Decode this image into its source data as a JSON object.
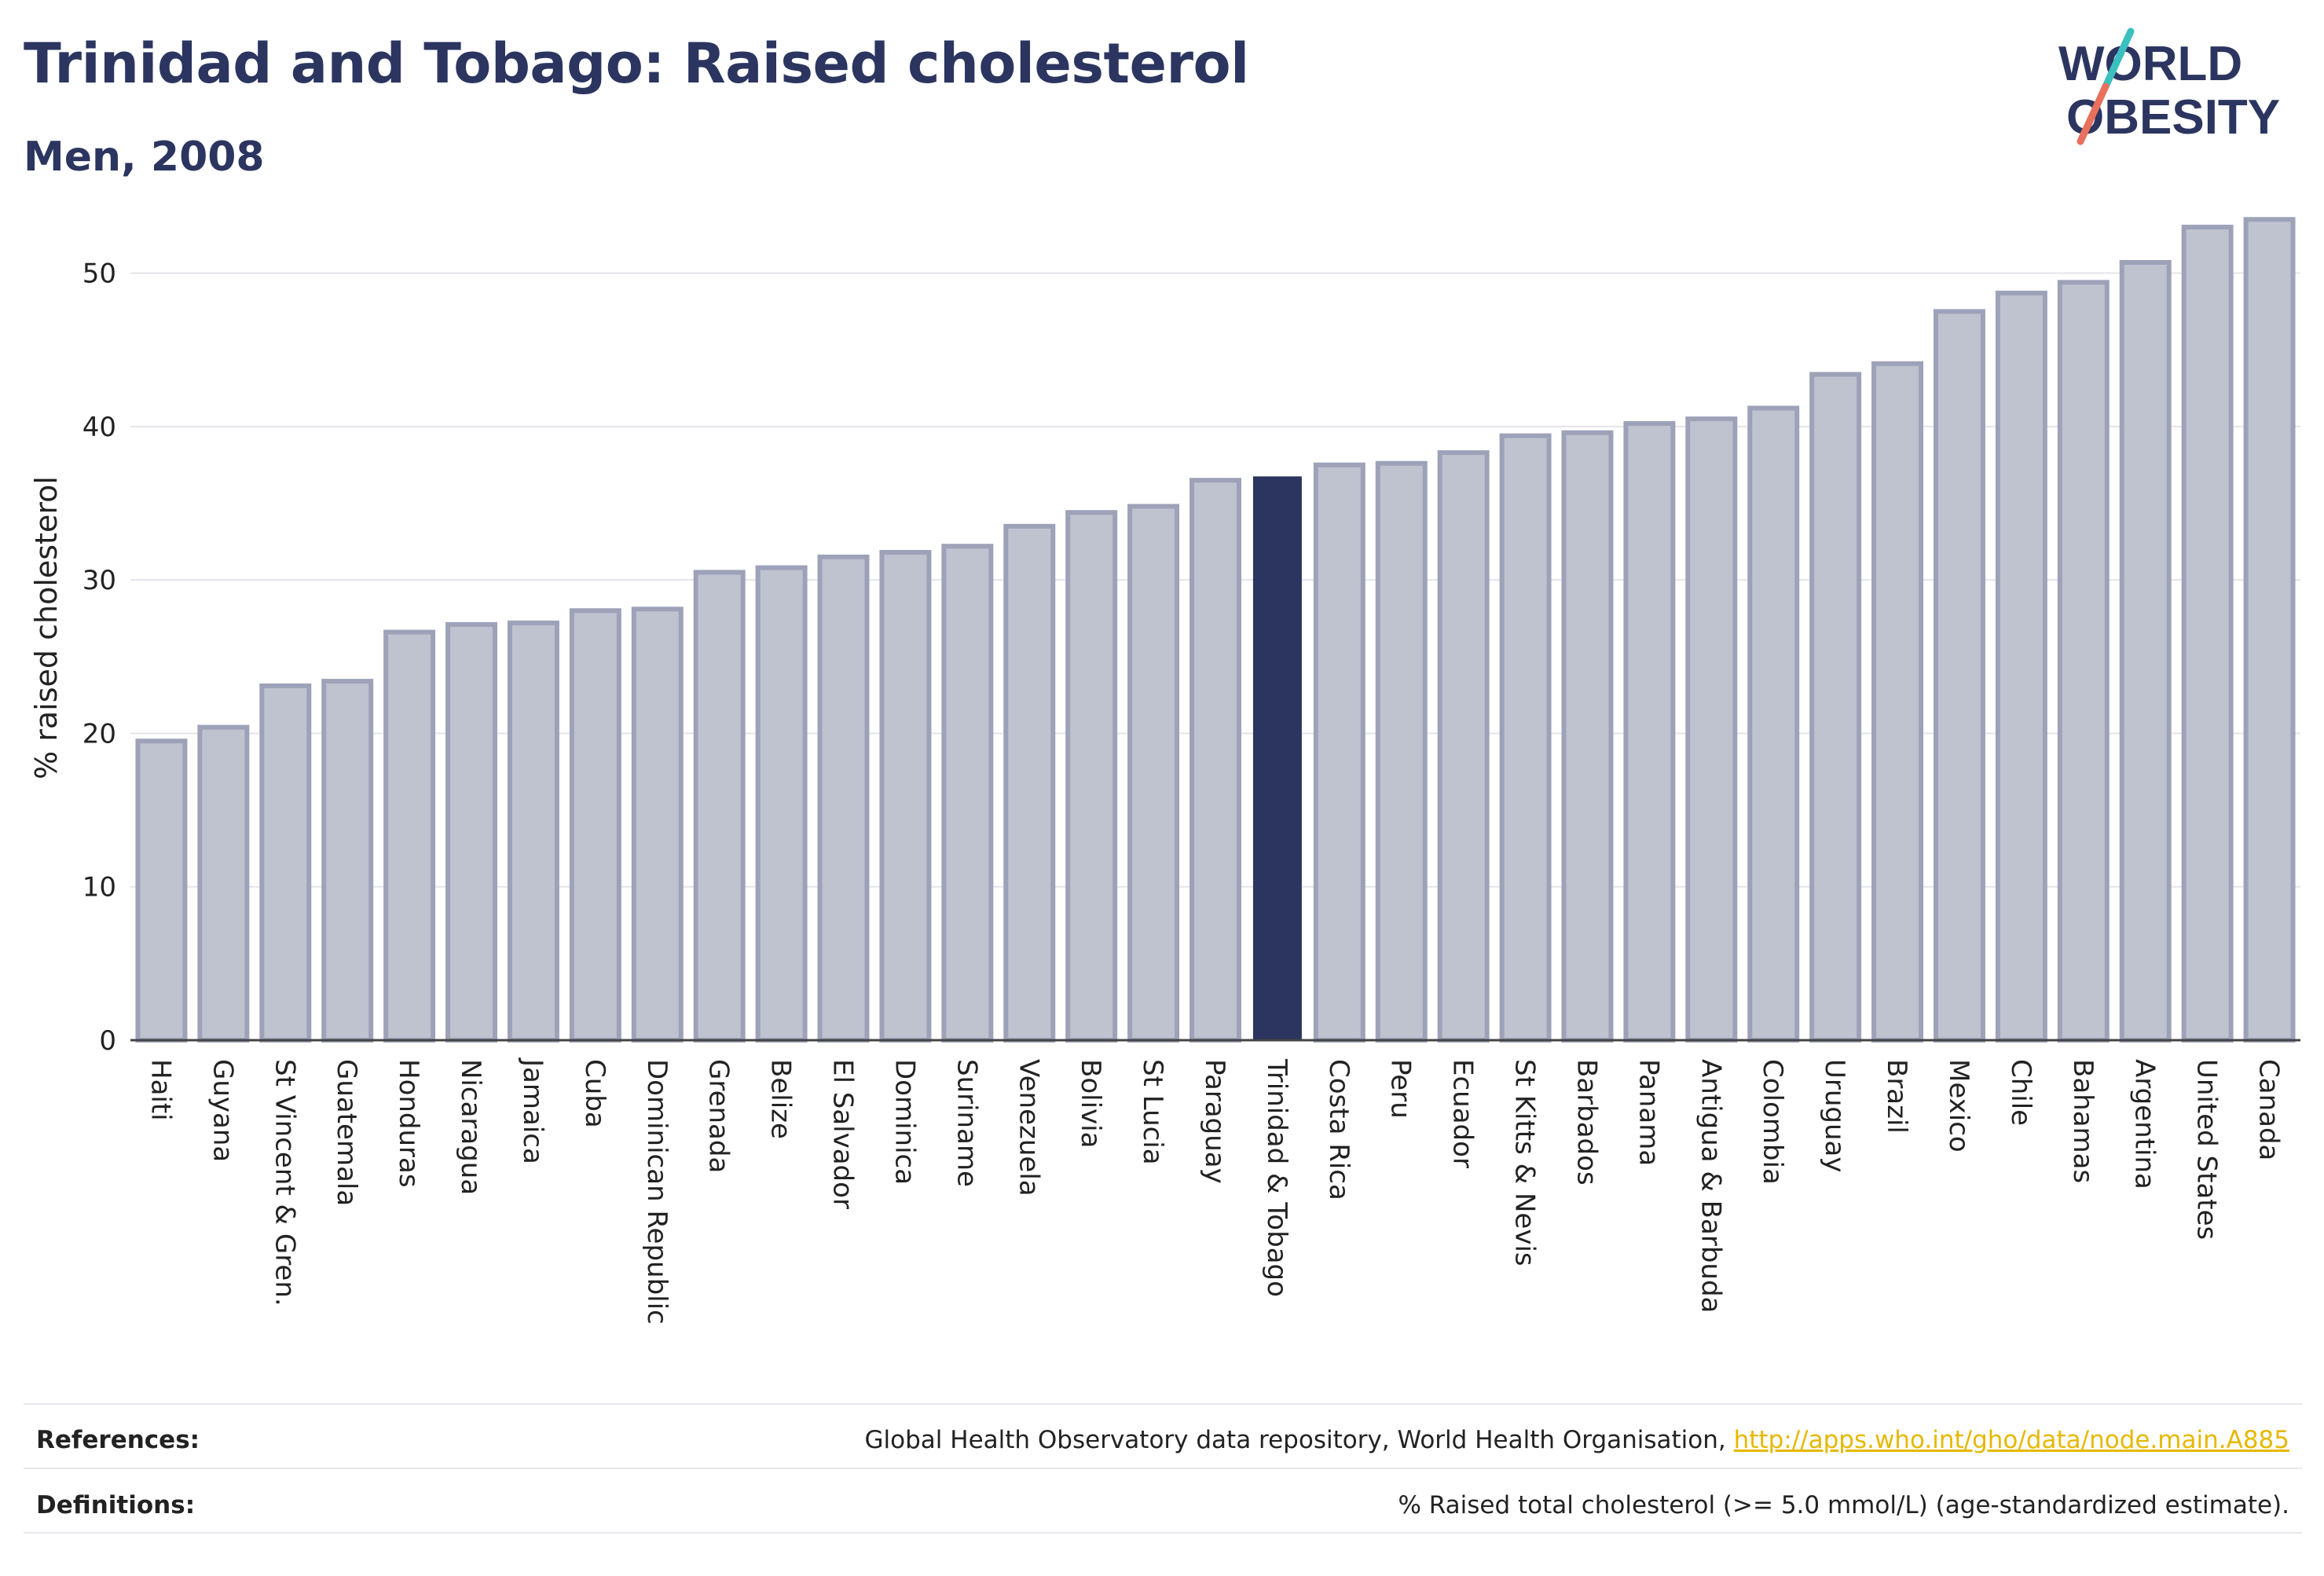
{
  "title": "Trinidad and Tobago: Raised cholesterol",
  "subtitle": "Men, 2008",
  "logo": {
    "line1": "WORLD",
    "line2": "OBESITY"
  },
  "colors": {
    "bar_fill": "#bfc2cf",
    "bar_stroke": "#9da2b8",
    "highlight": "#2b3560",
    "grid": "#e3e5ea",
    "title": "#2b3560",
    "link": "#e6b800",
    "logo_teal": "#3bbfbf",
    "logo_coral": "#e8705c"
  },
  "chart_data": {
    "type": "bar",
    "title": "Trinidad and Tobago: Raised cholesterol",
    "subtitle": "Men, 2008",
    "ylabel": "% raised cholesterol",
    "xlabel": "",
    "ylim": [
      0,
      55
    ],
    "yticks": [
      0,
      10,
      20,
      30,
      40,
      50
    ],
    "grid": true,
    "highlight": "Trinidad & Tobago",
    "categories": [
      "Haiti",
      "Guyana",
      "St Vincent & Gren.",
      "Guatemala",
      "Honduras",
      "Nicaragua",
      "Jamaica",
      "Cuba",
      "Dominican Republic",
      "Grenada",
      "Belize",
      "El Salvador",
      "Dominica",
      "Suriname",
      "Venezuela",
      "Bolivia",
      "St Lucia",
      "Paraguay",
      "Trinidad & Tobago",
      "Costa Rica",
      "Peru",
      "Ecuador",
      "St Kitts & Nevis",
      "Barbados",
      "Panama",
      "Antigua & Barbuda",
      "Colombia",
      "Uruguay",
      "Brazil",
      "Mexico",
      "Chile",
      "Bahamas",
      "Argentina",
      "United States",
      "Canada"
    ],
    "values": [
      19.5,
      20.4,
      23.1,
      23.4,
      26.6,
      27.1,
      27.2,
      28.0,
      28.1,
      30.5,
      30.8,
      31.5,
      31.8,
      32.2,
      33.5,
      34.4,
      34.8,
      36.5,
      36.7,
      37.5,
      37.6,
      38.3,
      39.4,
      39.6,
      40.2,
      40.5,
      41.2,
      43.4,
      44.1,
      47.5,
      48.7,
      49.4,
      50.7,
      53.0,
      53.5
    ]
  },
  "footer": {
    "references_label": "References:",
    "references_text": "Global Health Observatory data repository, World Health Organisation, ",
    "references_link": "http://apps.who.int/gho/data/node.main.A885",
    "definitions_label": "Definitions:",
    "definitions_text": "% Raised total cholesterol (>= 5.0 mmol/L) (age-standardized estimate)."
  }
}
